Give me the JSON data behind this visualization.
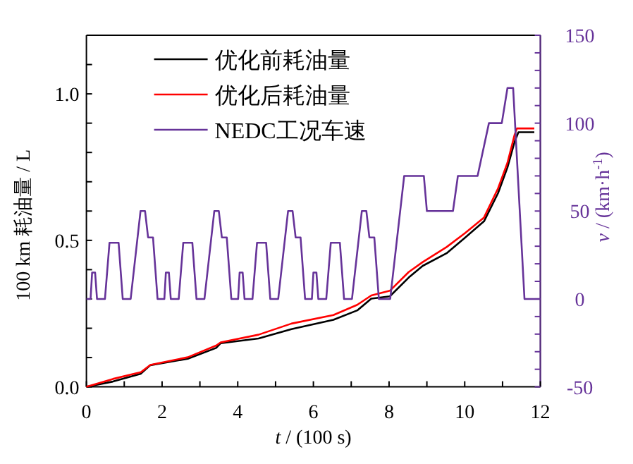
{
  "chart_data": {
    "type": "line",
    "xlabel": "*t* / (100 s)",
    "ylabel": "100 km 耗油量 / L",
    "y2label": "*v* / (km·h$^{-1}$)",
    "legend": "top left",
    "xlim": [
      0,
      12
    ],
    "ylim": [
      0,
      1.2
    ],
    "y2lim": [
      -50,
      150
    ],
    "xticks": [
      0,
      {
        "value": 1,
        "label": null
      },
      2,
      {
        "value": 3,
        "label": null
      },
      4,
      {
        "value": 5,
        "label": null
      },
      6,
      {
        "value": 7,
        "label": null
      },
      8,
      {
        "value": 9,
        "label": null
      },
      10,
      {
        "value": 11,
        "label": null
      },
      12
    ],
    "yticks": [
      {
        "value": 0,
        "label": "0.0"
      },
      {
        "value": 0.1,
        "label": null
      },
      {
        "value": 0.2,
        "label": null
      },
      {
        "value": 0.3,
        "label": null
      },
      {
        "value": 0.4,
        "label": null
      },
      0.5,
      {
        "value": 0.6,
        "label": null
      },
      {
        "value": 0.7,
        "label": null
      },
      {
        "value": 0.8,
        "label": null
      },
      {
        "value": 0.9,
        "label": null
      },
      {
        "value": 1,
        "label": "1.0"
      },
      {
        "value": 1.1,
        "label": null
      }
    ],
    "y2ticks": [
      -50,
      {
        "value": -40,
        "label": null
      },
      {
        "value": -30,
        "label": null
      },
      {
        "value": -20,
        "label": null
      },
      {
        "value": -10,
        "label": null
      },
      0,
      {
        "value": 10,
        "label": null
      },
      {
        "value": 20,
        "label": null
      },
      {
        "value": 30,
        "label": null
      },
      {
        "value": 40,
        "label": null
      },
      50,
      {
        "value": 60,
        "label": null
      },
      {
        "value": 70,
        "label": null
      },
      {
        "value": 80,
        "label": null
      },
      {
        "value": 90,
        "label": null
      },
      100,
      {
        "value": 110,
        "label": null
      },
      {
        "value": 120,
        "label": null
      },
      {
        "value": 130,
        "label": null
      },
      {
        "value": 140,
        "label": null
      },
      150
    ],
    "series": [
      {
        "name": "优化前耗油量",
        "color": "#000000",
        "x": [
          0,
          0.7,
          1.44,
          1.69,
          2.68,
          3.43,
          3.55,
          4.55,
          5.42,
          6.53,
          7.16,
          7.53,
          8.02,
          8.52,
          8.89,
          9.52,
          10.01,
          10.51,
          10.88,
          11.13,
          11.32,
          11.42,
          11.84
        ],
        "values": [
          0,
          0.018,
          0.045,
          0.074,
          0.096,
          0.133,
          0.149,
          0.165,
          0.197,
          0.229,
          0.261,
          0.301,
          0.309,
          0.373,
          0.413,
          0.456,
          0.509,
          0.565,
          0.661,
          0.749,
          0.837,
          0.869,
          0.869
        ]
      },
      {
        "name": "优化后耗油量",
        "color": "#ff0000",
        "x": [
          0,
          0.7,
          1.44,
          1.69,
          2.68,
          3.43,
          3.55,
          4.55,
          5.42,
          6.53,
          7.16,
          7.53,
          8.02,
          8.52,
          8.89,
          9.52,
          10.01,
          10.51,
          10.88,
          11.13,
          11.32,
          11.38,
          11.84
        ],
        "values": [
          0,
          0.027,
          0.05,
          0.075,
          0.101,
          0.141,
          0.152,
          0.178,
          0.216,
          0.245,
          0.28,
          0.312,
          0.328,
          0.392,
          0.426,
          0.477,
          0.525,
          0.578,
          0.677,
          0.765,
          0.861,
          0.882,
          0.882
        ]
      },
      {
        "name": "NEDC工况车速",
        "color": "#663399",
        "axis": "y2",
        "x": [
          0,
          0.11,
          0.15,
          0.23,
          0.28,
          0.49,
          0.61,
          0.85,
          0.96,
          1.17,
          1.43,
          1.55,
          1.63,
          1.76,
          1.88,
          1.95,
          2.06,
          2.1,
          2.18,
          2.23,
          2.44,
          2.56,
          2.8,
          2.91,
          3.12,
          3.38,
          3.5,
          3.58,
          3.71,
          3.83,
          3.9,
          4.01,
          4.05,
          4.13,
          4.18,
          4.39,
          4.51,
          4.75,
          4.86,
          5.07,
          5.33,
          5.45,
          5.53,
          5.66,
          5.78,
          5.85,
          5.96,
          6,
          6.08,
          6.13,
          6.34,
          6.46,
          6.7,
          6.81,
          7.02,
          7.28,
          7.4,
          7.48,
          7.61,
          7.73,
          8.03,
          8.4,
          8.92,
          9,
          9.69,
          9.82,
          10.34,
          10.64,
          10.98,
          11.13,
          11.28,
          11.58,
          12
        ],
        "values": [
          0,
          0,
          15,
          15,
          0,
          0,
          32,
          32,
          0,
          0,
          50,
          50,
          35,
          35,
          0,
          0,
          0,
          15,
          15,
          0,
          0,
          32,
          32,
          0,
          0,
          50,
          50,
          35,
          35,
          0,
          0,
          0,
          15,
          15,
          0,
          0,
          32,
          32,
          0,
          0,
          50,
          50,
          35,
          35,
          0,
          0,
          0,
          15,
          15,
          0,
          0,
          32,
          32,
          0,
          0,
          50,
          50,
          35,
          35,
          0,
          0,
          70,
          70,
          50,
          50,
          70,
          70,
          100,
          100,
          120,
          120,
          0,
          0
        ]
      }
    ]
  }
}
